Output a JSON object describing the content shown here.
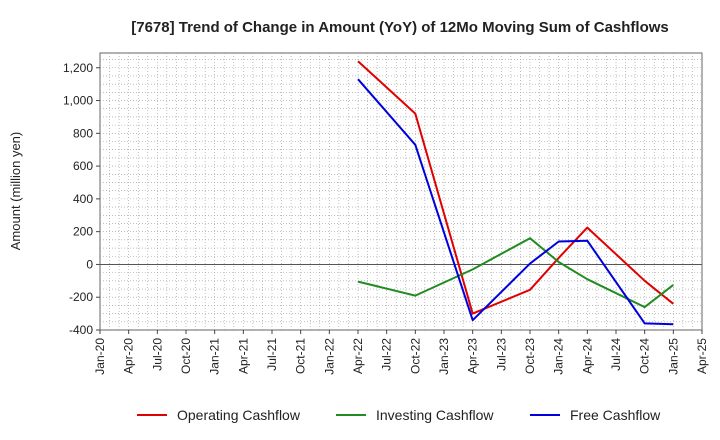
{
  "chart_data": {
    "type": "line",
    "title": "[7678]  Trend of Change in Amount (YoY) of 12Mo Moving Sum of Cashflows",
    "xlabel": "",
    "ylabel": "Amount (million yen)",
    "ylim": [
      -400,
      1290
    ],
    "yticks": [
      -400,
      -200,
      0,
      200,
      400,
      600,
      800,
      1000,
      1200
    ],
    "ytick_labels": [
      "-400",
      "-200",
      "0",
      "200",
      "400",
      "600",
      "800",
      "1,000",
      "1,200"
    ],
    "xticks": [
      "Jan-20",
      "Apr-20",
      "Jul-20",
      "Oct-20",
      "Jan-21",
      "Apr-21",
      "Jul-21",
      "Oct-21",
      "Jan-22",
      "Apr-22",
      "Jul-22",
      "Oct-22",
      "Jan-23",
      "Apr-23",
      "Jul-23",
      "Oct-23",
      "Jan-24",
      "Apr-24",
      "Jul-24",
      "Oct-24",
      "Jan-25",
      "Apr-25"
    ],
    "x": [
      "Apr-22",
      "Oct-22",
      "Apr-23",
      "Oct-23",
      "Jan-24",
      "Apr-24",
      "Oct-24",
      "Jan-25"
    ],
    "series": [
      {
        "name": "Operating Cashflow",
        "color": "#e00000",
        "values": [
          1240,
          920,
          -300,
          -155,
          40,
          225,
          -100,
          -240
        ]
      },
      {
        "name": "Investing Cashflow",
        "color": "#228b22",
        "values": [
          -105,
          -190,
          -30,
          160,
          15,
          -90,
          -260,
          -125
        ]
      },
      {
        "name": "Free Cashflow",
        "color": "#0000dd",
        "values": [
          1130,
          730,
          -340,
          5,
          140,
          145,
          -360,
          -365
        ]
      }
    ],
    "grid": true,
    "legend": "bottom"
  }
}
